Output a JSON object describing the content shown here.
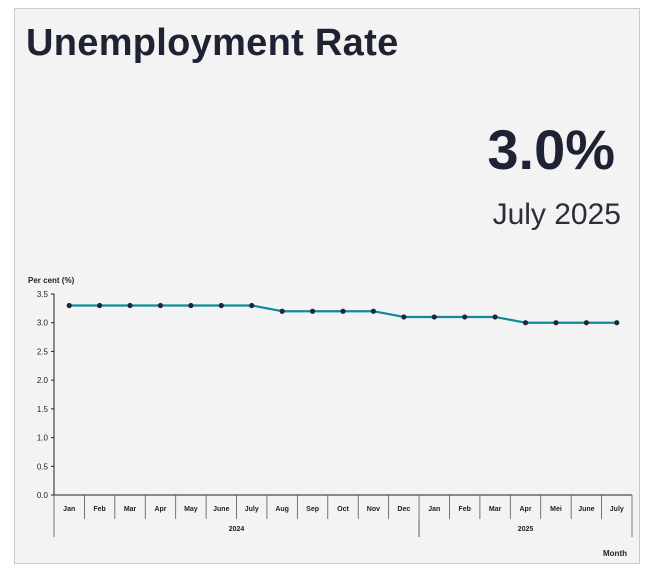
{
  "header": {
    "title": "Unemployment Rate",
    "headline_value": "3.0%",
    "headline_period": "July 2025"
  },
  "chart_data": {
    "type": "line",
    "ylabel": "Per cent (%)",
    "xlabel": "Month",
    "ylim": [
      0,
      3.5
    ],
    "yticks": [
      "0.0",
      "0.5",
      "1.0",
      "1.5",
      "2.0",
      "2.5",
      "3.0",
      "3.5"
    ],
    "ytick_values": [
      0,
      0.5,
      1,
      1.5,
      2,
      2.5,
      3,
      3.5
    ],
    "categories": [
      "Jan",
      "Feb",
      "Mar",
      "Apr",
      "May",
      "June",
      "July",
      "Aug",
      "Sep",
      "Oct",
      "Nov",
      "Dec",
      "Jan",
      "Feb",
      "Mar",
      "Apr",
      "Mei",
      "June",
      "July"
    ],
    "years": [
      {
        "label": "2024",
        "start": 0,
        "end": 11
      },
      {
        "label": "2025",
        "start": 12,
        "end": 18
      }
    ],
    "series": [
      {
        "values": [
          3.3,
          3.3,
          3.3,
          3.3,
          3.3,
          3.3,
          3.3,
          3.2,
          3.2,
          3.2,
          3.2,
          3.1,
          3.1,
          3.1,
          3.1,
          3.0,
          3.0,
          3.0,
          3.0
        ]
      }
    ],
    "grid": false,
    "legend": "none",
    "colors": {
      "line": "#0e8a9a",
      "marker": "#1a2a3a",
      "axis": "#222222"
    }
  }
}
